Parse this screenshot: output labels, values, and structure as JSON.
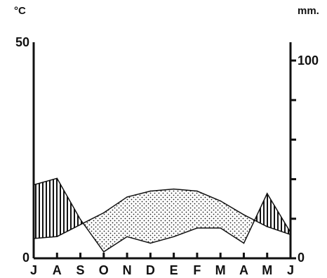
{
  "chart_data": {
    "type": "area",
    "title": "",
    "categories": [
      "J",
      "A",
      "S",
      "O",
      "N",
      "D",
      "E",
      "F",
      "M",
      "A",
      "M",
      "J"
    ],
    "left_axis": {
      "unit": "°C",
      "range": [
        0,
        50
      ],
      "tick_labels": [
        "0",
        "50"
      ]
    },
    "right_axis": {
      "unit": "mm.",
      "range": [
        0,
        100
      ],
      "tick_labels": [
        "0",
        "100"
      ]
    },
    "series": [
      {
        "axis": "left",
        "values": [
          17,
          18.5,
          9,
          1.5,
          5,
          3.5,
          5,
          7,
          7,
          3.5,
          15,
          6
        ]
      },
      {
        "axis": "right",
        "values": [
          10,
          11,
          17,
          23,
          31,
          34,
          35,
          34,
          29,
          22,
          16,
          12
        ]
      }
    ],
    "fill_legend": {
      "hatched": "temperature above precipitation",
      "dotted": "precipitation above temperature"
    },
    "colors": {
      "ink": "#111111",
      "paper": "#ffffff"
    },
    "grid": false
  }
}
